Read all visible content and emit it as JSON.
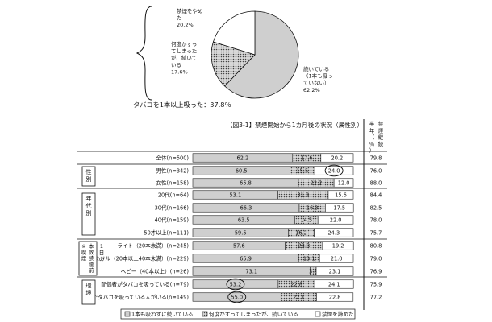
{
  "chart_data": [
    {
      "type": "pie",
      "slices": [
        {
          "label": "続いている\n（1本も吸っ\nていない）",
          "value": 62.2,
          "value_label": "62.2%"
        },
        {
          "label": "何度かすっ\nてしまった\nが、続いて\nいる",
          "value": 17.6,
          "value_label": "17.6%"
        },
        {
          "label": "禁煙をやめ\nた",
          "value": 20.2,
          "value_label": "20.2%"
        }
      ],
      "annotation": "タバコを1本以上吸った：37.8％",
      "colors": [
        "#cfcfcf",
        "#8c8c8c",
        "#ffffff"
      ]
    },
    {
      "type": "bar",
      "stacked": true,
      "orientation": "horizontal",
      "title": "【図3-1】禁煙開始から1カ月後の状況（属性別）",
      "right_header": "半年禁煙継続（％）",
      "series": [
        {
          "name": "1本も吸わずに続いている"
        },
        {
          "name": "何度かすってしまったが、続いている"
        },
        {
          "name": "禁煙を諦めた"
        }
      ],
      "rows": [
        {
          "label": "全体(n=500)",
          "values": [
            62.2,
            17.6,
            20.2
          ],
          "right": "79.8",
          "circle": null
        },
        {
          "label": "男性(n=342)",
          "values": [
            60.5,
            15.5,
            24.0
          ],
          "right": "76.0",
          "circle": 2
        },
        {
          "label": "女性(n=158)",
          "values": [
            65.8,
            22.2,
            12.0
          ],
          "right": "88.0",
          "circle": null
        },
        {
          "label": "20代(n=64)",
          "values": [
            53.1,
            31.3,
            15.6
          ],
          "right": "84.4",
          "circle": null
        },
        {
          "label": "30代(n=166)",
          "values": [
            66.3,
            16.3,
            17.5
          ],
          "right": "82.5",
          "circle": null
        },
        {
          "label": "40代(n=159)",
          "values": [
            63.5,
            14.5,
            22.0
          ],
          "right": "78.0",
          "circle": null
        },
        {
          "label": "50才以上(n=111)",
          "values": [
            59.5,
            16.2,
            24.3
          ],
          "right": "75.7",
          "circle": null
        },
        {
          "label": "ライト（20本未満）(n=245)",
          "values": [
            57.6,
            23.3,
            19.2
          ],
          "right": "80.8",
          "circle": null
        },
        {
          "label": "ミドル（20本以上40本未満）(n=229)",
          "values": [
            65.9,
            13.1,
            21.0
          ],
          "right": "79.0",
          "circle": null
        },
        {
          "label": "ヘビー（40本以上）(n=26)",
          "values": [
            73.1,
            3.8,
            23.1
          ],
          "right": "76.9",
          "circle": null
        },
        {
          "label": "配偶者がタバコを吸っている(n=79)",
          "values": [
            53.2,
            22.8,
            24.1
          ],
          "right": "75.9",
          "circle": 0
        },
        {
          "label": "家族でタバコを吸っている人がいる(n=149)",
          "values": [
            55.0,
            22.1,
            22.8
          ],
          "right": "77.2",
          "circle": 0
        }
      ],
      "groups": [
        {
          "label": "性別",
          "rows": [
            1,
            2
          ]
        },
        {
          "label": "年代別",
          "rows": [
            3,
            6
          ]
        },
        {
          "label": "※喫煙本数禁煙前",
          "sub_label": "1日の",
          "rows": [
            7,
            9
          ]
        },
        {
          "label": "環境",
          "rows": [
            10,
            11
          ]
        }
      ],
      "xlim": [
        0,
        100
      ],
      "legend_position": "bottom"
    }
  ]
}
